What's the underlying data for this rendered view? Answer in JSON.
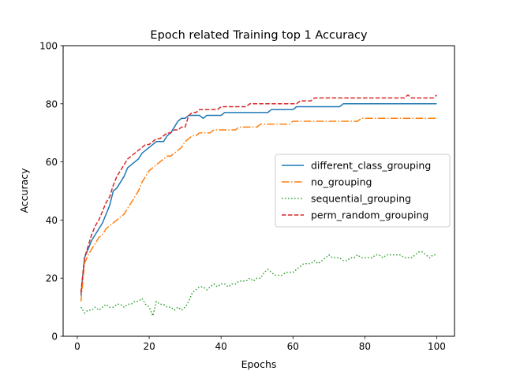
{
  "chart_data": {
    "type": "line",
    "title": "Epoch related Training top 1 Accuracy",
    "xlabel": "Epochs",
    "ylabel": "Accuracy",
    "xlim": [
      -3.95,
      104.95
    ],
    "ylim": [
      0,
      100
    ],
    "xticks": [
      0,
      20,
      40,
      60,
      80,
      100
    ],
    "yticks": [
      0,
      20,
      40,
      60,
      80,
      100
    ],
    "grid": false,
    "legend_position": "center-right",
    "series": [
      {
        "name": "different_class_grouping",
        "color": "#1f77b4",
        "style": "solid",
        "x": [
          1,
          2,
          3,
          4,
          5,
          6,
          7,
          8,
          9,
          10,
          11,
          12,
          13,
          14,
          15,
          16,
          17,
          18,
          19,
          20,
          21,
          22,
          23,
          24,
          25,
          26,
          27,
          28,
          29,
          30,
          31,
          32,
          33,
          34,
          35,
          36,
          37,
          38,
          39,
          40,
          41,
          42,
          43,
          44,
          45,
          46,
          47,
          48,
          49,
          50,
          51,
          52,
          53,
          54,
          55,
          56,
          57,
          58,
          59,
          60,
          61,
          62,
          63,
          64,
          65,
          66,
          67,
          68,
          69,
          70,
          71,
          72,
          73,
          74,
          75,
          76,
          77,
          78,
          79,
          80,
          81,
          82,
          83,
          84,
          85,
          86,
          87,
          88,
          89,
          90,
          91,
          92,
          93,
          94,
          95,
          96,
          97,
          98,
          99,
          100
        ],
        "values": [
          14,
          27,
          30,
          33,
          35,
          37,
          39,
          42,
          45,
          50,
          51,
          53,
          55,
          58,
          59,
          60,
          61,
          63,
          64,
          65,
          66,
          67,
          67,
          67,
          69,
          70,
          72,
          74,
          75,
          75,
          76,
          76,
          76,
          76,
          75,
          76,
          76,
          76,
          76,
          76,
          77,
          77,
          77,
          77,
          77,
          77,
          77,
          77,
          77,
          77,
          77,
          77,
          77,
          78,
          78,
          78,
          78,
          78,
          78,
          78,
          79,
          79,
          79,
          79,
          79,
          79,
          79,
          79,
          79,
          79,
          79,
          79,
          79,
          80,
          80,
          80,
          80,
          80,
          80,
          80,
          80,
          80,
          80,
          80,
          80,
          80,
          80,
          80,
          80,
          80,
          80,
          80,
          80,
          80,
          80,
          80,
          80,
          80,
          80,
          80
        ]
      },
      {
        "name": "no_grouping",
        "color": "#ff7f0e",
        "style": "dashdot",
        "x": [
          1,
          2,
          3,
          4,
          5,
          6,
          7,
          8,
          9,
          10,
          11,
          12,
          13,
          14,
          15,
          16,
          17,
          18,
          19,
          20,
          21,
          22,
          23,
          24,
          25,
          26,
          27,
          28,
          29,
          30,
          31,
          32,
          33,
          34,
          35,
          36,
          37,
          38,
          39,
          40,
          41,
          42,
          43,
          44,
          45,
          46,
          47,
          48,
          49,
          50,
          51,
          52,
          53,
          54,
          55,
          56,
          57,
          58,
          59,
          60,
          61,
          62,
          63,
          64,
          65,
          66,
          67,
          68,
          69,
          70,
          71,
          72,
          73,
          74,
          75,
          76,
          77,
          78,
          79,
          80,
          81,
          82,
          83,
          84,
          85,
          86,
          87,
          88,
          89,
          90,
          91,
          92,
          93,
          94,
          95,
          96,
          97,
          98,
          99,
          100
        ],
        "values": [
          12,
          25,
          28,
          30,
          32,
          34,
          35,
          37,
          38,
          39,
          40,
          41,
          42,
          44,
          46,
          48,
          50,
          53,
          55,
          57,
          58,
          59,
          60,
          61,
          62,
          62,
          63,
          64,
          65,
          67,
          68,
          69,
          69,
          70,
          70,
          70,
          70,
          71,
          71,
          71,
          71,
          71,
          71,
          71,
          72,
          72,
          72,
          72,
          72,
          72,
          73,
          73,
          73,
          73,
          73,
          73,
          73,
          73,
          73,
          74,
          74,
          74,
          74,
          74,
          74,
          74,
          74,
          74,
          74,
          74,
          74,
          74,
          74,
          74,
          74,
          74,
          74,
          74,
          75,
          75,
          75,
          75,
          75,
          75,
          75,
          75,
          75,
          75,
          75,
          75,
          75,
          75,
          75,
          75,
          75,
          75,
          75,
          75,
          75,
          75
        ]
      },
      {
        "name": "sequential_grouping",
        "color": "#2ca02c",
        "style": "dotted",
        "x": [
          1,
          2,
          3,
          4,
          5,
          6,
          7,
          8,
          9,
          10,
          11,
          12,
          13,
          14,
          15,
          16,
          17,
          18,
          19,
          20,
          21,
          22,
          23,
          24,
          25,
          26,
          27,
          28,
          29,
          30,
          31,
          32,
          33,
          34,
          35,
          36,
          37,
          38,
          39,
          40,
          41,
          42,
          43,
          44,
          45,
          46,
          47,
          48,
          49,
          50,
          51,
          52,
          53,
          54,
          55,
          56,
          57,
          58,
          59,
          60,
          61,
          62,
          63,
          64,
          65,
          66,
          67,
          68,
          69,
          70,
          71,
          72,
          73,
          74,
          75,
          76,
          77,
          78,
          79,
          80,
          81,
          82,
          83,
          84,
          85,
          86,
          87,
          88,
          89,
          90,
          91,
          92,
          93,
          94,
          95,
          96,
          97,
          98,
          99,
          100
        ],
        "values": [
          10,
          8,
          9,
          9,
          10,
          9,
          10,
          11,
          10,
          10,
          11,
          11,
          10,
          11,
          11,
          12,
          12,
          13,
          11,
          10,
          7,
          12,
          11,
          11,
          10,
          10,
          9,
          10,
          9,
          10,
          12,
          15,
          16,
          17,
          17,
          16,
          17,
          18,
          17,
          18,
          18,
          17,
          18,
          18,
          19,
          19,
          19,
          20,
          19,
          20,
          20,
          22,
          23,
          22,
          21,
          21,
          21,
          22,
          22,
          22,
          23,
          24,
          25,
          25,
          25,
          26,
          25,
          26,
          27,
          28,
          27,
          27,
          27,
          26,
          26,
          27,
          27,
          28,
          27,
          27,
          27,
          27,
          28,
          28,
          27,
          28,
          28,
          28,
          28,
          28,
          27,
          27,
          27,
          28,
          29,
          29,
          28,
          27,
          28,
          28
        ]
      },
      {
        "name": "perm_random_grouping",
        "color": "#d62728",
        "style": "dashed",
        "x": [
          1,
          2,
          3,
          4,
          5,
          6,
          7,
          8,
          9,
          10,
          11,
          12,
          13,
          14,
          15,
          16,
          17,
          18,
          19,
          20,
          21,
          22,
          23,
          24,
          25,
          26,
          27,
          28,
          29,
          30,
          31,
          32,
          33,
          34,
          35,
          36,
          37,
          38,
          39,
          40,
          41,
          42,
          43,
          44,
          45,
          46,
          47,
          48,
          49,
          50,
          51,
          52,
          53,
          54,
          55,
          56,
          57,
          58,
          59,
          60,
          61,
          62,
          63,
          64,
          65,
          66,
          67,
          68,
          69,
          70,
          71,
          72,
          73,
          74,
          75,
          76,
          77,
          78,
          79,
          80,
          81,
          82,
          83,
          84,
          85,
          86,
          87,
          88,
          89,
          90,
          91,
          92,
          93,
          94,
          95,
          96,
          97,
          98,
          99,
          100
        ],
        "values": [
          15,
          27,
          31,
          35,
          38,
          40,
          43,
          46,
          48,
          52,
          55,
          57,
          59,
          61,
          62,
          63,
          64,
          65,
          66,
          66,
          67,
          68,
          68,
          69,
          70,
          70,
          71,
          71,
          72,
          72,
          76,
          77,
          77,
          78,
          78,
          78,
          78,
          78,
          78,
          79,
          79,
          79,
          79,
          79,
          79,
          79,
          79,
          80,
          80,
          80,
          80,
          80,
          80,
          80,
          80,
          80,
          80,
          80,
          80,
          80,
          80,
          81,
          81,
          81,
          81,
          82,
          82,
          82,
          82,
          82,
          82,
          82,
          82,
          82,
          82,
          82,
          82,
          82,
          82,
          82,
          82,
          82,
          82,
          82,
          82,
          82,
          82,
          82,
          82,
          82,
          82,
          83,
          82,
          82,
          82,
          82,
          82,
          82,
          82,
          83
        ]
      }
    ]
  }
}
